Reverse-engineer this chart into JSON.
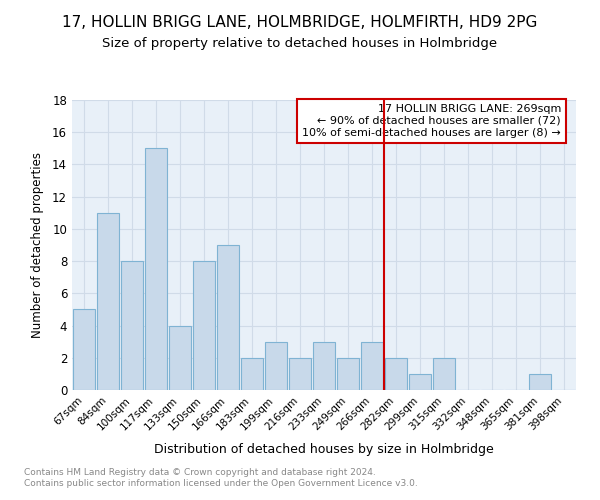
{
  "title": "17, HOLLIN BRIGG LANE, HOLMBRIDGE, HOLMFIRTH, HD9 2PG",
  "subtitle": "Size of property relative to detached houses in Holmbridge",
  "xlabel": "Distribution of detached houses by size in Holmbridge",
  "ylabel": "Number of detached properties",
  "categories": [
    "67sqm",
    "84sqm",
    "100sqm",
    "117sqm",
    "133sqm",
    "150sqm",
    "166sqm",
    "183sqm",
    "199sqm",
    "216sqm",
    "233sqm",
    "249sqm",
    "266sqm",
    "282sqm",
    "299sqm",
    "315sqm",
    "332sqm",
    "348sqm",
    "365sqm",
    "381sqm",
    "398sqm"
  ],
  "values": [
    5,
    11,
    8,
    15,
    4,
    8,
    9,
    2,
    3,
    2,
    3,
    2,
    3,
    2,
    1,
    2,
    0,
    0,
    0,
    1,
    0
  ],
  "bar_color": "#c8d9ea",
  "bar_edge_color": "#7fb3d3",
  "grid_color": "#d0dbe8",
  "annotation_box_color": "#cc0000",
  "vline_color": "#cc0000",
  "vline_position": 12.5,
  "annotation_text_line1": "17 HOLLIN BRIGG LANE: 269sqm",
  "annotation_text_line2": "← 90% of detached houses are smaller (72)",
  "annotation_text_line3": "10% of semi-detached houses are larger (8) →",
  "footer_line1": "Contains HM Land Registry data © Crown copyright and database right 2024.",
  "footer_line2": "Contains public sector information licensed under the Open Government Licence v3.0.",
  "ylim": [
    0,
    18
  ],
  "yticks": [
    0,
    2,
    4,
    6,
    8,
    10,
    12,
    14,
    16,
    18
  ],
  "bg_color": "#e8f0f8",
  "title_fontsize": 11,
  "subtitle_fontsize": 9.5
}
